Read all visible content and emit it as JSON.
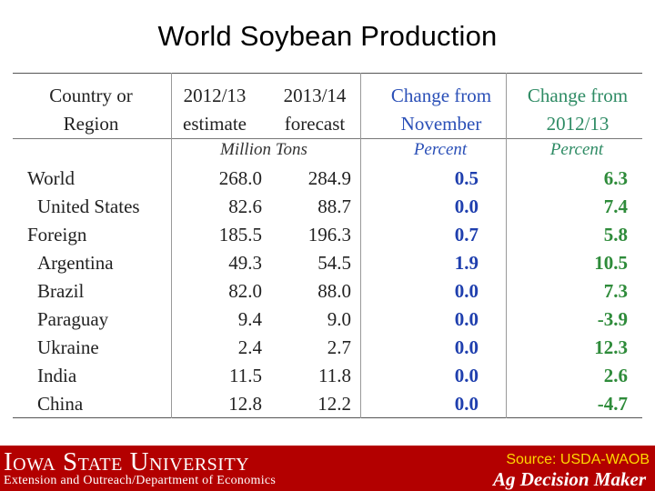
{
  "slide": {
    "title": "World Soybean Production"
  },
  "table": {
    "headers": [
      {
        "line1": "Country or",
        "line2": "Region"
      },
      {
        "line1": "2012/13",
        "line2": "estimate"
      },
      {
        "line1": "2013/14",
        "line2": "forecast"
      },
      {
        "line1": "Change from",
        "line2": "November"
      },
      {
        "line1": "Change from",
        "line2": "2012/13"
      }
    ],
    "units": {
      "tons": "Million Tons",
      "pct1": "Percent",
      "pct2": "Percent"
    },
    "rows": [
      {
        "name": "World",
        "estimate": "268.0",
        "forecast": "284.9",
        "chg_nov": "0.5",
        "chg_prev": "6.3"
      },
      {
        "name": "United States",
        "estimate": "82.6",
        "forecast": "88.7",
        "chg_nov": "0.0",
        "chg_prev": "7.4"
      },
      {
        "name": "Foreign",
        "estimate": "185.5",
        "forecast": "196.3",
        "chg_nov": "0.7",
        "chg_prev": "5.8"
      },
      {
        "name": "Argentina",
        "estimate": "49.3",
        "forecast": "54.5",
        "chg_nov": "1.9",
        "chg_prev": "10.5"
      },
      {
        "name": "Brazil",
        "estimate": "82.0",
        "forecast": "88.0",
        "chg_nov": "0.0",
        "chg_prev": "7.3"
      },
      {
        "name": "Paraguay",
        "estimate": "9.4",
        "forecast": "9.0",
        "chg_nov": "0.0",
        "chg_prev": "-3.9"
      },
      {
        "name": "Ukraine",
        "estimate": "2.4",
        "forecast": "2.7",
        "chg_nov": "0.0",
        "chg_prev": "12.3"
      },
      {
        "name": "India",
        "estimate": "11.5",
        "forecast": "11.8",
        "chg_nov": "0.0",
        "chg_prev": "2.6"
      },
      {
        "name": "China",
        "estimate": "12.8",
        "forecast": "12.2",
        "chg_nov": "0.0",
        "chg_prev": "-4.7"
      }
    ]
  },
  "footer": {
    "university": "Iowa State University",
    "extension": "Extension and Outreach/Department of Economics",
    "source": "Source: USDA-WAOB",
    "program": "Ag Decision Maker"
  },
  "colors": {
    "footer_bg": "#b30000",
    "source_text": "#ffd800",
    "change_nov": "#1f3fae",
    "change_prev": "#2e8b3a"
  }
}
